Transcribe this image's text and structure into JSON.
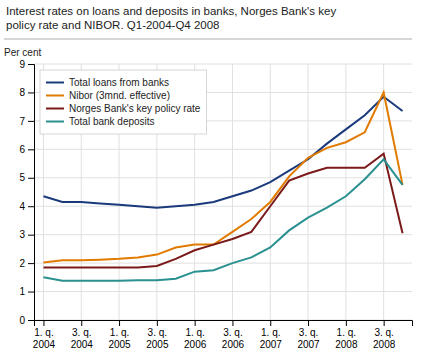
{
  "chart_data": {
    "type": "line",
    "title": "Interest rates on loans and deposits in banks, Norges Bank's key\npolicy rate and NIBOR. Q1-2004-Q4 2008",
    "ylabel": "Per cent",
    "categories": [
      "1. q.\n2004",
      null,
      "3. q.\n2004",
      null,
      "1. q.\n2005",
      null,
      "3. q.\n2005",
      null,
      "1. q.\n2006",
      null,
      "3. q.\n2006",
      null,
      "1. q.\n2007",
      null,
      "3. q.\n2007",
      null,
      "1. q.\n2008",
      null,
      "3. q.\n2008",
      null
    ],
    "series": [
      {
        "name": "Total loans from banks",
        "color": "#1a3a7c",
        "values": [
          4.35,
          4.15,
          4.15,
          4.1,
          4.05,
          4.0,
          3.95,
          4.0,
          4.05,
          4.15,
          4.35,
          4.55,
          4.85,
          5.25,
          5.65,
          6.2,
          6.7,
          7.2,
          7.85,
          7.35
        ]
      },
      {
        "name": "Nibor (3mnd. effective)",
        "color": "#e07b00",
        "values": [
          2.02,
          2.1,
          2.1,
          2.12,
          2.15,
          2.2,
          2.3,
          2.55,
          2.65,
          2.65,
          3.1,
          3.55,
          4.15,
          5.05,
          5.7,
          6.05,
          6.25,
          6.6,
          8.0,
          4.75
        ]
      },
      {
        "name": "Norges Bank's key policy rate",
        "color": "#7a1a1a",
        "values": [
          1.85,
          1.85,
          1.85,
          1.85,
          1.85,
          1.85,
          1.9,
          2.15,
          2.45,
          2.65,
          2.85,
          3.1,
          4.0,
          4.9,
          5.15,
          5.35,
          5.35,
          5.35,
          5.85,
          3.05
        ]
      },
      {
        "name": "Total bank deposits",
        "color": "#2a9090",
        "values": [
          1.5,
          1.38,
          1.38,
          1.38,
          1.38,
          1.4,
          1.4,
          1.45,
          1.7,
          1.75,
          2.0,
          2.2,
          2.55,
          3.15,
          3.6,
          3.95,
          4.35,
          4.95,
          5.65,
          4.75
        ]
      }
    ],
    "ylim": [
      0,
      9
    ],
    "yticks": [
      0,
      1,
      2,
      3,
      4,
      5,
      6,
      7,
      8,
      9
    ],
    "grid": true,
    "legend": "upper left"
  }
}
